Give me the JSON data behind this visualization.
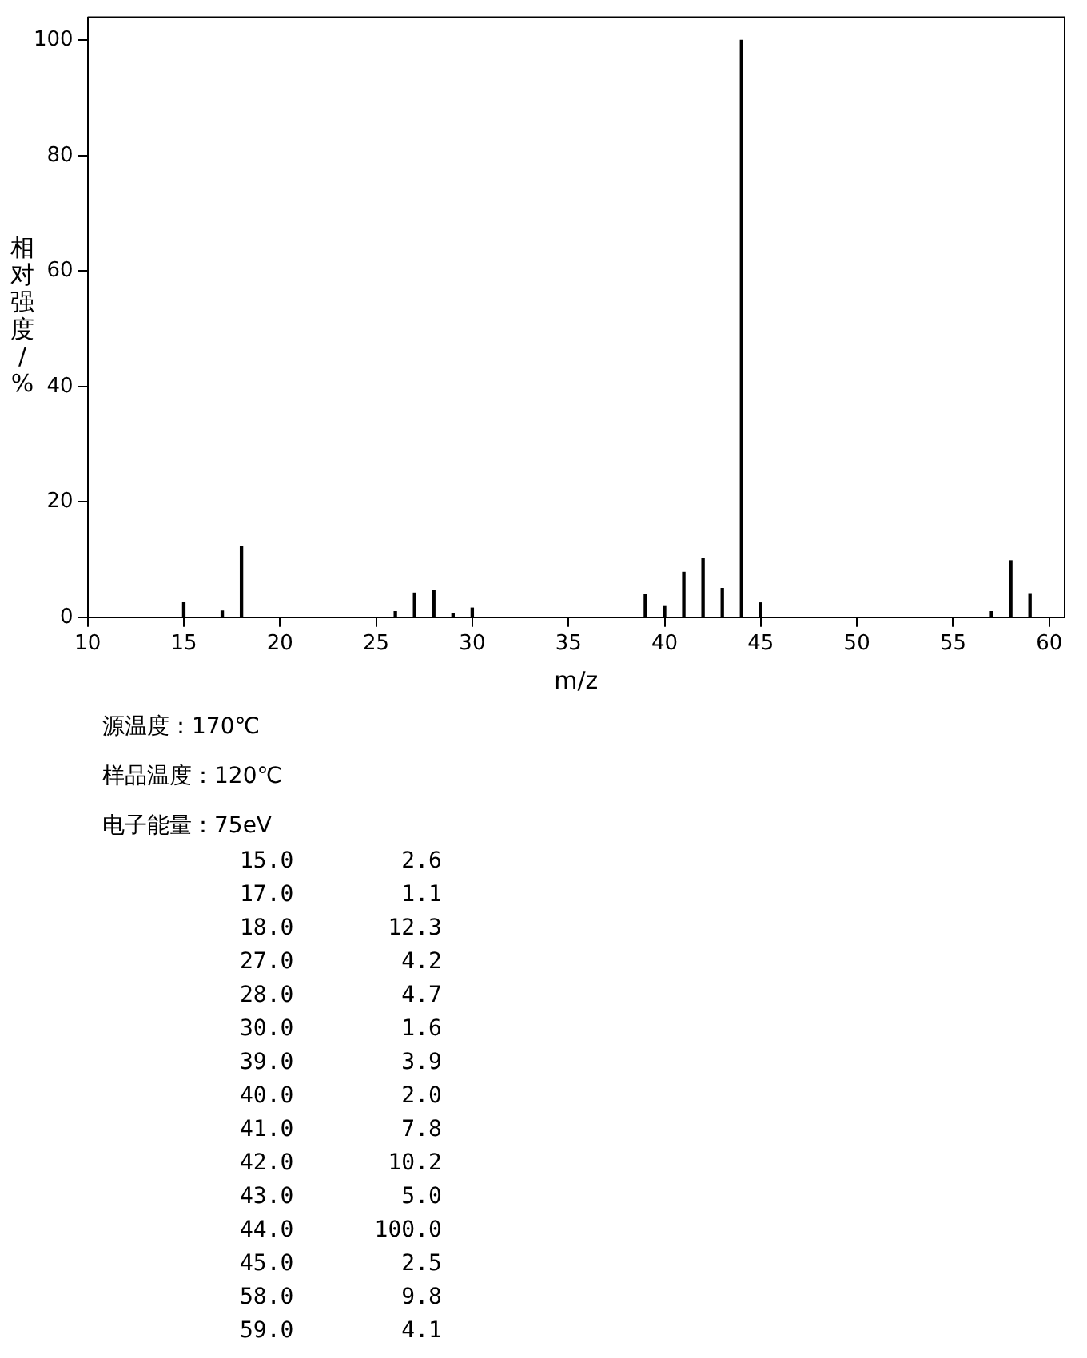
{
  "chart_data": {
    "type": "bar",
    "xlabel": "m/z",
    "ylabel": "相对强度/%",
    "x": [
      15,
      17,
      18,
      26,
      27,
      28,
      29,
      30,
      39,
      40,
      41,
      42,
      43,
      44,
      45,
      57,
      58,
      59
    ],
    "values": [
      2.6,
      1.1,
      12.3,
      1.0,
      4.2,
      4.7,
      0.6,
      1.6,
      3.9,
      2.0,
      7.8,
      10.2,
      5.0,
      100.0,
      2.5,
      1.0,
      9.8,
      4.1
    ],
    "color": "#000000",
    "xlim": [
      10,
      60.8
    ],
    "xticks": [
      10,
      15,
      20,
      25,
      30,
      35,
      40,
      45,
      50,
      55,
      60
    ],
    "ylim": [
      0,
      104
    ],
    "yticks": [
      0,
      20,
      40,
      60,
      80,
      100
    ],
    "grid": false,
    "legend": false,
    "annotations": [
      "源温度：170℃",
      "样品温度：120℃",
      "电子能量：75eV",
      "15.0        2.6",
      "17.0        1.1",
      "18.0       12.3",
      "27.0        4.2",
      "28.0        4.7",
      "30.0        1.6",
      "39.0        3.9",
      "40.0        2.0",
      "41.0        7.8",
      "42.0       10.2",
      "43.0        5.0",
      "44.0      100.0",
      "45.0        2.5",
      "58.0        9.8",
      "59.0        4.1"
    ]
  }
}
